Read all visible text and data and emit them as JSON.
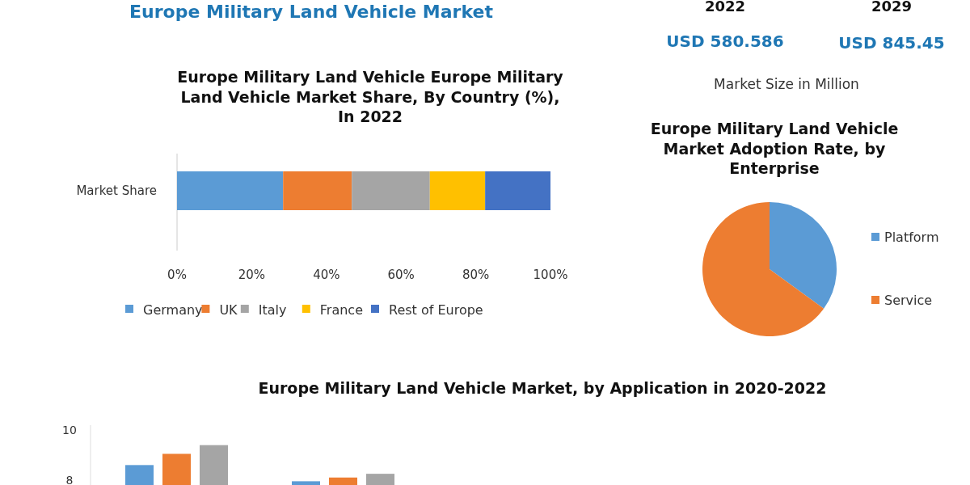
{
  "chart_data": [
    {
      "type": "other",
      "title": "Europe Military Land Vehicle Market",
      "annotations": [
        "2022",
        "2029",
        "USD 580.586",
        "USD 845.45",
        "Market Size in Million"
      ]
    },
    {
      "type": "bar",
      "orientation": "horizontal",
      "stacked": true,
      "title": "Europe Military Land Vehicle Europe Military Land Vehicle Market Share, By Country (%), In 2022",
      "categories": [
        "Market Share"
      ],
      "series": [
        {
          "name": "Germany",
          "color": "#5b9bd5",
          "values": [
            28.4
          ]
        },
        {
          "name": "UK",
          "color": "#ed7d31",
          "values": [
            18.4
          ]
        },
        {
          "name": "Italy",
          "color": "#a5a5a5",
          "values": [
            20.9
          ]
        },
        {
          "name": "France",
          "color": "#ffc000",
          "values": [
            14.8
          ]
        },
        {
          "name": "Rest of Europe",
          "color": "#4472c4",
          "values": [
            17.5
          ]
        }
      ],
      "xlim": [
        0,
        100
      ],
      "xticks": [
        {
          "value": 0,
          "label": "0%"
        },
        {
          "value": 20,
          "label": "20%"
        },
        {
          "value": 40,
          "label": "40%"
        },
        {
          "value": 60,
          "label": "60%"
        },
        {
          "value": 80,
          "label": "80%"
        },
        {
          "value": 100,
          "label": "100%"
        }
      ],
      "grid": false,
      "legend": "bottom"
    },
    {
      "type": "pie",
      "title": "Europe Military Land Vehicle Market Adoption Rate, by Enterprise",
      "categories": [
        "Platform",
        "Service"
      ],
      "values": [
        35,
        65
      ],
      "colors": [
        "#5b9bd5",
        "#ed7d31"
      ],
      "legend": "right"
    },
    {
      "type": "bar",
      "title": "Europe Military Land Vehicle Market, by Application in 2020-2022",
      "categories": [
        null,
        null
      ],
      "series": [
        {
          "color": "#5b9bd5",
          "values": [
            8.6,
            7.95
          ]
        },
        {
          "color": "#ed7d31",
          "values": [
            9.05,
            8.1
          ]
        },
        {
          "color": "#a5a5a5",
          "values": [
            9.4,
            8.25
          ]
        }
      ],
      "ylim": [
        7.8,
        10.2
      ],
      "yticks": [
        8,
        10
      ],
      "grid": false
    }
  ]
}
